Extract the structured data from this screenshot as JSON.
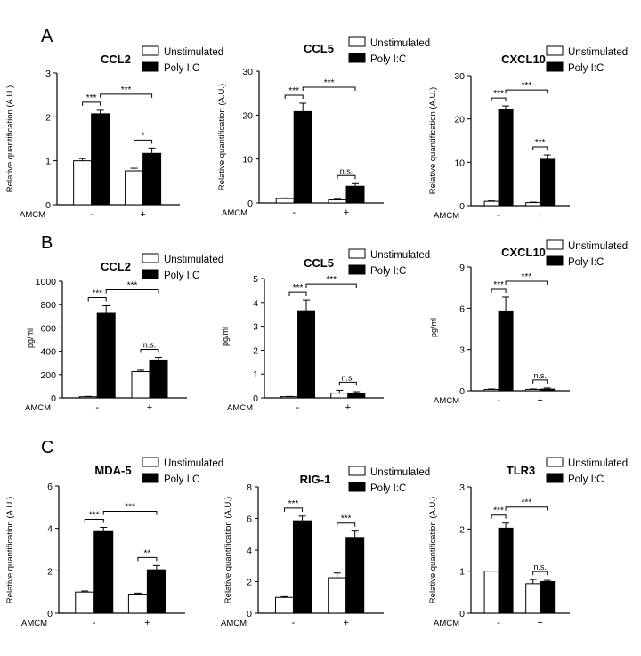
{
  "figure": {
    "panel_labels": [
      "A",
      "B",
      "C"
    ],
    "treatment_label": "AMCM",
    "treatment_ticks": [
      "-",
      "+"
    ],
    "legend_entries": [
      "Unstimulated",
      "Poly I:C"
    ],
    "colors": {
      "unstimulated": "#ffffff",
      "polyic": "#000000",
      "stroke": "#000000"
    }
  },
  "chart_data": [
    {
      "panel": "A",
      "type": "bar",
      "title": "CCL2",
      "ylabel": "Relative quantification (A.U.)",
      "xlabel": "AMCM",
      "categories": [
        "-",
        "+"
      ],
      "ylim": [
        0,
        3
      ],
      "yticks": [
        0,
        1,
        2,
        3
      ],
      "series": [
        {
          "name": "Unstimulated",
          "values": [
            1.0,
            0.77
          ],
          "errors": [
            0.05,
            0.06
          ]
        },
        {
          "name": "Poly I:C",
          "values": [
            2.07,
            1.17
          ],
          "errors": [
            0.08,
            0.12
          ]
        }
      ],
      "annotations": [
        {
          "between": "within-minus",
          "label": "***"
        },
        {
          "between": "polyic-across",
          "label": "***"
        },
        {
          "between": "within-plus",
          "label": "*"
        }
      ]
    },
    {
      "panel": "A",
      "type": "bar",
      "title": "CCL5",
      "ylabel": "Relative quantification (A.U.)",
      "xlabel": "AMCM",
      "categories": [
        "-",
        "+"
      ],
      "ylim": [
        0,
        30
      ],
      "yticks": [
        0,
        10,
        20,
        30
      ],
      "series": [
        {
          "name": "Unstimulated",
          "values": [
            1.0,
            0.7
          ],
          "errors": [
            0.15,
            0.15
          ]
        },
        {
          "name": "Poly I:C",
          "values": [
            20.8,
            3.8
          ],
          "errors": [
            1.9,
            0.6
          ]
        }
      ],
      "annotations": [
        {
          "between": "within-minus",
          "label": "***"
        },
        {
          "between": "polyic-across",
          "label": "***"
        },
        {
          "between": "within-plus",
          "label": "n.s."
        }
      ]
    },
    {
      "panel": "A",
      "type": "bar",
      "title": "CXCL10",
      "ylabel": "Relative quantification (A.U.)",
      "xlabel": "AMCM",
      "categories": [
        "-",
        "+"
      ],
      "ylim": [
        0,
        30
      ],
      "yticks": [
        0,
        10,
        20,
        30
      ],
      "series": [
        {
          "name": "Unstimulated",
          "values": [
            1.0,
            0.7
          ],
          "errors": [
            0.1,
            0.1
          ]
        },
        {
          "name": "Poly I:C",
          "values": [
            22.2,
            10.7
          ],
          "errors": [
            0.8,
            1.0
          ]
        }
      ],
      "annotations": [
        {
          "between": "within-minus",
          "label": "***"
        },
        {
          "between": "polyic-across",
          "label": "***"
        },
        {
          "between": "within-plus",
          "label": "***"
        }
      ]
    },
    {
      "panel": "B",
      "type": "bar",
      "title": "CCL2",
      "ylabel": "pg/ml",
      "xlabel": "AMCM",
      "categories": [
        "-",
        "+"
      ],
      "ylim": [
        0,
        1000
      ],
      "yticks": [
        0,
        200,
        400,
        600,
        800,
        1000
      ],
      "series": [
        {
          "name": "Unstimulated",
          "values": [
            10,
            225
          ],
          "errors": [
            3,
            12
          ]
        },
        {
          "name": "Poly I:C",
          "values": [
            725,
            325
          ],
          "errors": [
            65,
            22
          ]
        }
      ],
      "annotations": [
        {
          "between": "within-minus",
          "label": "***"
        },
        {
          "between": "polyic-across",
          "label": "***"
        },
        {
          "between": "within-plus",
          "label": "n.s."
        }
      ]
    },
    {
      "panel": "B",
      "type": "bar",
      "title": "CCL5",
      "ylabel": "pg/ml",
      "xlabel": "AMCM",
      "categories": [
        "-",
        "+"
      ],
      "ylim": [
        0,
        5
      ],
      "yticks": [
        0,
        1,
        2,
        3,
        4,
        5
      ],
      "series": [
        {
          "name": "Unstimulated",
          "values": [
            0.05,
            0.2
          ],
          "errors": [
            0.01,
            0.12
          ]
        },
        {
          "name": "Poly I:C",
          "values": [
            3.65,
            0.2
          ],
          "errors": [
            0.45,
            0.06
          ]
        }
      ],
      "annotations": [
        {
          "between": "within-minus",
          "label": "***"
        },
        {
          "between": "polyic-across",
          "label": "***"
        },
        {
          "between": "within-plus",
          "label": "n.s."
        }
      ]
    },
    {
      "panel": "B",
      "type": "bar",
      "title": "CXCL10",
      "ylabel": "pg/ml",
      "xlabel": "AMCM",
      "categories": [
        "-",
        "+"
      ],
      "ylim": [
        0,
        9
      ],
      "yticks": [
        0,
        3,
        6,
        9
      ],
      "series": [
        {
          "name": "Unstimulated",
          "values": [
            0.1,
            0.1
          ],
          "errors": [
            0.03,
            0.03
          ]
        },
        {
          "name": "Poly I:C",
          "values": [
            5.8,
            0.12
          ],
          "errors": [
            1.0,
            0.08
          ]
        }
      ],
      "annotations": [
        {
          "between": "within-minus",
          "label": "***"
        },
        {
          "between": "polyic-across",
          "label": "***"
        },
        {
          "between": "within-plus",
          "label": "n.s."
        }
      ]
    },
    {
      "panel": "C",
      "type": "bar",
      "title": "MDA-5",
      "ylabel": "Relative quantification (A.U.)",
      "xlabel": "AMCM",
      "categories": [
        "-",
        "+"
      ],
      "ylim": [
        0,
        6
      ],
      "yticks": [
        0,
        2,
        4,
        6
      ],
      "series": [
        {
          "name": "Unstimulated",
          "values": [
            1.0,
            0.9
          ],
          "errors": [
            0.05,
            0.05
          ]
        },
        {
          "name": "Poly I:C",
          "values": [
            3.85,
            2.05
          ],
          "errors": [
            0.2,
            0.2
          ]
        }
      ],
      "annotations": [
        {
          "between": "within-minus",
          "label": "***"
        },
        {
          "between": "polyic-across",
          "label": "***"
        },
        {
          "between": "within-plus",
          "label": "**"
        }
      ]
    },
    {
      "panel": "C",
      "type": "bar",
      "title": "RIG-1",
      "ylabel": "Relative quantification (A.U.)",
      "xlabel": "AMCM",
      "categories": [
        "-",
        "+"
      ],
      "ylim": [
        0,
        8
      ],
      "yticks": [
        0,
        2,
        4,
        6,
        8
      ],
      "series": [
        {
          "name": "Unstimulated",
          "values": [
            1.0,
            2.25
          ],
          "errors": [
            0.05,
            0.3
          ]
        },
        {
          "name": "Poly I:C",
          "values": [
            5.85,
            4.8
          ],
          "errors": [
            0.3,
            0.4
          ]
        }
      ],
      "annotations": [
        {
          "between": "within-minus",
          "label": "***"
        },
        {
          "between": "within-plus",
          "label": "***"
        }
      ]
    },
    {
      "panel": "C",
      "type": "bar",
      "title": "TLR3",
      "ylabel": "Relative quantification (A.U.)",
      "xlabel": "AMCM",
      "categories": [
        "-",
        "+"
      ],
      "ylim": [
        0,
        3
      ],
      "yticks": [
        0,
        1,
        2,
        3
      ],
      "series": [
        {
          "name": "Unstimulated",
          "values": [
            1.0,
            0.7
          ],
          "errors": [
            0.0,
            0.1
          ]
        },
        {
          "name": "Poly I:C",
          "values": [
            2.02,
            0.75
          ],
          "errors": [
            0.12,
            0.03
          ]
        }
      ],
      "annotations": [
        {
          "between": "within-minus",
          "label": "***"
        },
        {
          "between": "polyic-across",
          "label": "***"
        },
        {
          "between": "within-plus",
          "label": "n.s."
        }
      ]
    }
  ]
}
